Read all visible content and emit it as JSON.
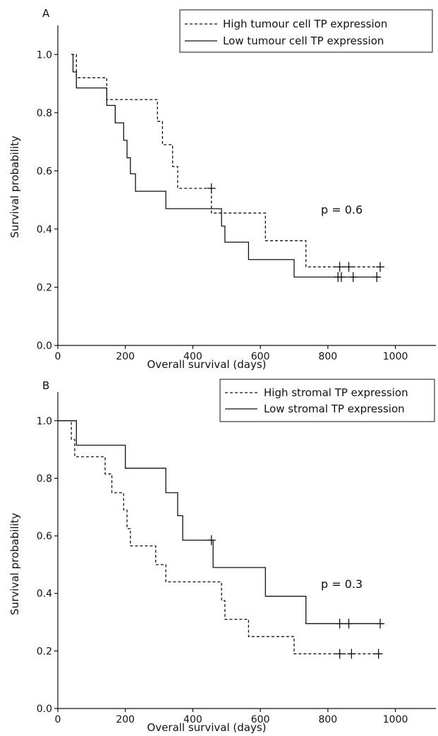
{
  "chart_data": [
    {
      "type": "line",
      "panel_label": "A",
      "xlabel": "Overall survival (days)",
      "ylabel": "Survival probability",
      "xlim": [
        0,
        1120
      ],
      "ylim": [
        0,
        1.1
      ],
      "xticks": [
        0,
        200,
        400,
        600,
        800,
        1000
      ],
      "yticks": [
        0.0,
        0.2,
        0.4,
        0.6,
        0.8,
        1.0
      ],
      "ytick_labels": [
        "0.0",
        "0.2",
        "0.4",
        "0.6",
        "0.8",
        "1.0"
      ],
      "annotation": "p = 0.6",
      "legend_position": "top-right",
      "series": [
        {
          "name": "High tumour cell TP expression",
          "style": "dashed",
          "x": [
            40,
            55,
            145,
            295,
            310,
            340,
            355,
            370,
            455,
            615,
            735,
            965
          ],
          "y": [
            1.0,
            0.92,
            0.845,
            0.77,
            0.69,
            0.615,
            0.54,
            0.54,
            0.455,
            0.36,
            0.27,
            0.27
          ],
          "censored": [
            [
              455,
              0.54
            ],
            [
              835,
              0.27
            ],
            [
              862,
              0.27
            ],
            [
              955,
              0.27
            ]
          ]
        },
        {
          "name": "Low tumour cell TP expression",
          "style": "solid",
          "x": [
            40,
            45,
            55,
            145,
            170,
            195,
            205,
            215,
            230,
            320,
            485,
            495,
            565,
            700,
            955
          ],
          "y": [
            1.0,
            0.94,
            0.885,
            0.825,
            0.765,
            0.705,
            0.645,
            0.59,
            0.53,
            0.47,
            0.41,
            0.355,
            0.295,
            0.235,
            0.235
          ],
          "censored": [
            [
              830,
              0.235
            ],
            [
              840,
              0.235
            ],
            [
              875,
              0.235
            ],
            [
              945,
              0.235
            ]
          ]
        }
      ]
    },
    {
      "type": "line",
      "panel_label": "B",
      "xlabel": "Overall survival (days)",
      "ylabel": "Survival probability",
      "xlim": [
        0,
        1120
      ],
      "ylim": [
        0,
        1.1
      ],
      "xticks": [
        0,
        200,
        400,
        600,
        800,
        1000
      ],
      "yticks": [
        0.0,
        0.2,
        0.4,
        0.6,
        0.8,
        1.0
      ],
      "ytick_labels": [
        "0.0",
        "0.2",
        "0.4",
        "0.6",
        "0.8",
        "1.0"
      ],
      "annotation": "p = 0.3",
      "legend_position": "top-right",
      "series": [
        {
          "name": "High stromal TP expression",
          "style": "dashed",
          "x": [
            0,
            40,
            50,
            140,
            160,
            195,
            205,
            215,
            290,
            320,
            485,
            495,
            565,
            700,
            960
          ],
          "y": [
            1.0,
            0.935,
            0.875,
            0.815,
            0.75,
            0.69,
            0.625,
            0.565,
            0.5,
            0.44,
            0.375,
            0.31,
            0.25,
            0.19,
            0.19
          ],
          "censored": [
            [
              835,
              0.19
            ],
            [
              870,
              0.19
            ],
            [
              950,
              0.19
            ]
          ]
        },
        {
          "name": "Low stromal TP expression",
          "style": "solid",
          "x": [
            0,
            40,
            55,
            200,
            320,
            355,
            370,
            460,
            615,
            735,
            965
          ],
          "y": [
            1.0,
            1.0,
            0.915,
            0.835,
            0.75,
            0.67,
            0.585,
            0.49,
            0.39,
            0.295,
            0.295
          ],
          "censored": [
            [
              455,
              0.585
            ],
            [
              835,
              0.295
            ],
            [
              862,
              0.295
            ],
            [
              955,
              0.295
            ]
          ]
        }
      ]
    }
  ]
}
